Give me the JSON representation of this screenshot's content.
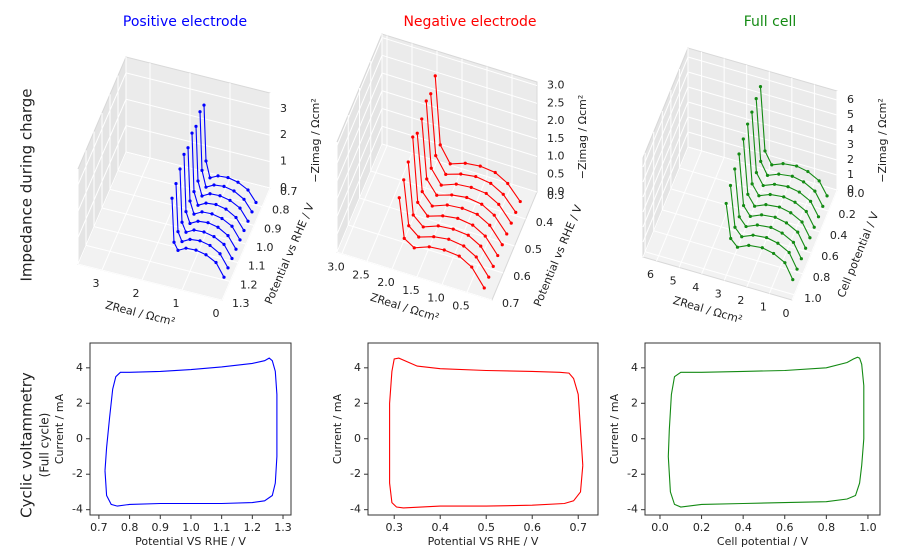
{
  "row_labels": [
    {
      "title": "Impedance during charge"
    },
    {
      "title": "Cyclic voltammetry",
      "subtitle": "(Full cycle)"
    }
  ],
  "chart_data": [
    {
      "type": "line3d",
      "title": "Positive electrode",
      "color": "#0000ff",
      "xlabel": "ZReal / Ωcm²",
      "ylabel": "Potential vs RHE / V",
      "zlabel": "−Zimag / Ωcm²",
      "xlim": [
        0,
        3.6
      ],
      "ylim": [
        0.7,
        1.3
      ],
      "zlim": [
        0,
        3.6
      ],
      "xticks": [
        0,
        1,
        2,
        3
      ],
      "yticks": [
        0.7,
        0.8,
        0.9,
        {
          "value": 1,
          "label": "1.0"
        },
        1.1,
        1.2,
        1.3
      ],
      "zticks": [
        0,
        1,
        2,
        3
      ],
      "x": [
        1.45,
        1.4,
        1.3,
        1.1,
        0.85,
        0.6,
        0.35,
        0.15
      ],
      "series": [
        {
          "y": 0.8,
          "values": [
            3.3,
            1.2,
            0.6,
            0.75,
            0.78,
            0.7,
            0.5,
            0.1
          ]
        },
        {
          "y": 0.85,
          "values": [
            3.4,
            1.2,
            0.6,
            0.76,
            0.8,
            0.72,
            0.5,
            0.1
          ]
        },
        {
          "y": 0.9,
          "values": [
            3.2,
            1.15,
            0.62,
            0.78,
            0.8,
            0.72,
            0.52,
            0.1
          ]
        },
        {
          "y": 0.95,
          "values": [
            3.3,
            1.1,
            0.62,
            0.78,
            0.82,
            0.74,
            0.52,
            0.1
          ]
        },
        {
          "y": 1.0,
          "values": [
            3.1,
            1.1,
            0.64,
            0.8,
            0.82,
            0.74,
            0.54,
            0.1
          ]
        },
        {
          "y": 1.05,
          "values": [
            3.2,
            1.05,
            0.64,
            0.8,
            0.84,
            0.76,
            0.54,
            0.1
          ]
        },
        {
          "y": 1.1,
          "values": [
            3.0,
            1.0,
            0.66,
            0.82,
            0.84,
            0.76,
            0.56,
            0.1
          ]
        },
        {
          "y": 1.15,
          "values": [
            2.8,
            1.0,
            0.66,
            0.82,
            0.86,
            0.78,
            0.56,
            0.1
          ]
        },
        {
          "y": 1.2,
          "values": [
            2.6,
            0.95,
            0.68,
            0.84,
            0.86,
            0.78,
            0.58,
            0.1
          ]
        }
      ]
    },
    {
      "type": "line3d",
      "title": "Negative electrode",
      "color": "#ff0000",
      "xlabel": "ZReal / Ωcm²",
      "ylabel": "Potential vs RHE / V",
      "zlabel": "−Zimag / Ωcm²",
      "xlim": [
        0,
        3.1
      ],
      "ylim": [
        0.3,
        0.7
      ],
      "zlim": [
        0,
        3.1
      ],
      "xticks": [
        0.5,
        {
          "value": 1,
          "label": "1.0"
        },
        1.5,
        {
          "value": 2,
          "label": "2.0"
        },
        2.5,
        {
          "value": 3,
          "label": "3.0"
        }
      ],
      "yticks": [
        0.3,
        0.4,
        0.5,
        0.6,
        0.7
      ],
      "zticks": [
        {
          "value": 0,
          "label": "0.0"
        },
        0.5,
        {
          "value": 1,
          "label": "1.0"
        },
        1.5,
        {
          "value": 2,
          "label": "2.0"
        },
        2.5,
        {
          "value": 3,
          "label": "3.0"
        }
      ],
      "x": [
        1.9,
        1.8,
        1.6,
        1.3,
        1.0,
        0.7,
        0.45,
        0.2
      ],
      "series": [
        {
          "y": 0.36,
          "values": [
            2.9,
            1.0,
            0.55,
            0.7,
            0.75,
            0.7,
            0.5,
            0.1
          ]
        },
        {
          "y": 0.4,
          "values": [
            2.7,
            1.0,
            0.56,
            0.7,
            0.76,
            0.7,
            0.5,
            0.1
          ]
        },
        {
          "y": 0.44,
          "values": [
            2.8,
            0.95,
            0.56,
            0.72,
            0.76,
            0.72,
            0.52,
            0.1
          ]
        },
        {
          "y": 0.48,
          "values": [
            2.6,
            0.95,
            0.58,
            0.72,
            0.78,
            0.72,
            0.52,
            0.1
          ]
        },
        {
          "y": 0.52,
          "values": [
            2.5,
            0.9,
            0.58,
            0.74,
            0.78,
            0.74,
            0.54,
            0.1
          ]
        },
        {
          "y": 0.56,
          "values": [
            2.7,
            0.9,
            0.6,
            0.74,
            0.8,
            0.74,
            0.54,
            0.1
          ]
        },
        {
          "y": 0.6,
          "values": [
            2.3,
            0.85,
            0.6,
            0.76,
            0.8,
            0.76,
            0.56,
            0.1
          ]
        },
        {
          "y": 0.64,
          "values": [
            2.1,
            0.85,
            0.62,
            0.76,
            0.82,
            0.76,
            0.56,
            0.1
          ]
        },
        {
          "y": 0.68,
          "values": [
            1.9,
            0.8,
            0.62,
            0.78,
            0.82,
            0.78,
            0.58,
            0.1
          ]
        }
      ]
    },
    {
      "type": "line3d",
      "title": "Full cell",
      "color": "#138a13",
      "xlabel": "ZReal / Ωcm²",
      "ylabel": "Cell potential / V",
      "zlabel": "−Zimag / Ωcm²",
      "xlim": [
        0,
        6.6
      ],
      "ylim": [
        0,
        1.05
      ],
      "zlim": [
        0,
        6.6
      ],
      "xticks": [
        0,
        1,
        2,
        3,
        4,
        5,
        6
      ],
      "yticks": [
        {
          "value": 0,
          "label": "0.0"
        },
        0.2,
        0.4,
        0.6,
        0.8,
        {
          "value": 1,
          "label": "1.0"
        }
      ],
      "zticks": [
        0,
        1,
        2,
        3,
        4,
        5,
        6
      ],
      "x": [
        3.2,
        3.0,
        2.7,
        2.2,
        1.6,
        1.1,
        0.6,
        0.25
      ],
      "series": [
        {
          "y": 0.1,
          "values": [
            6.2,
            2.0,
            1.2,
            1.5,
            1.6,
            1.45,
            1.05,
            0.2
          ]
        },
        {
          "y": 0.2,
          "values": [
            6.1,
            2.0,
            1.2,
            1.5,
            1.62,
            1.46,
            1.06,
            0.2
          ]
        },
        {
          "y": 0.3,
          "values": [
            5.9,
            1.95,
            1.22,
            1.52,
            1.62,
            1.48,
            1.08,
            0.2
          ]
        },
        {
          "y": 0.4,
          "values": [
            5.8,
            1.9,
            1.24,
            1.54,
            1.64,
            1.5,
            1.1,
            0.2
          ]
        },
        {
          "y": 0.5,
          "values": [
            5.5,
            1.9,
            1.24,
            1.56,
            1.66,
            1.5,
            1.1,
            0.2
          ]
        },
        {
          "y": 0.6,
          "values": [
            5.2,
            1.85,
            1.26,
            1.58,
            1.68,
            1.52,
            1.12,
            0.2
          ]
        },
        {
          "y": 0.7,
          "values": [
            4.9,
            1.8,
            1.28,
            1.6,
            1.7,
            1.54,
            1.14,
            0.2
          ]
        },
        {
          "y": 0.8,
          "values": [
            4.5,
            1.8,
            1.3,
            1.62,
            1.72,
            1.56,
            1.16,
            0.2
          ]
        },
        {
          "y": 0.9,
          "values": [
            4.0,
            1.75,
            1.3,
            1.64,
            1.74,
            1.58,
            1.18,
            0.2
          ]
        }
      ]
    },
    {
      "type": "line",
      "color": "#0000ff",
      "xlabel": "Potential VS RHE / V",
      "ylabel": "Current / mA",
      "xlim": [
        0.671,
        1.326
      ],
      "ylim": [
        -4.3,
        5.4
      ],
      "xticks": [
        0.7,
        0.8,
        0.9,
        {
          "value": 1,
          "label": "1.0"
        },
        1.1,
        1.2,
        1.3
      ],
      "yticks": [
        -4,
        -2,
        0,
        2,
        4
      ],
      "x": [
        0.72,
        0.725,
        0.74,
        0.76,
        0.8,
        0.9,
        1.0,
        1.1,
        1.2,
        1.24,
        1.265,
        1.275,
        1.28,
        1.28,
        1.275,
        1.265,
        1.255,
        1.24,
        1.2,
        1.1,
        1.0,
        0.9,
        0.8,
        0.77,
        0.755,
        0.745,
        0.735,
        0.725,
        0.72
      ],
      "values": [
        -1.8,
        -3.2,
        -3.7,
        -3.8,
        -3.7,
        -3.65,
        -3.65,
        -3.65,
        -3.6,
        -3.5,
        -3.2,
        -2.5,
        -1.0,
        2.5,
        3.8,
        4.4,
        4.55,
        4.4,
        4.25,
        4.05,
        3.9,
        3.8,
        3.75,
        3.75,
        3.5,
        2.8,
        1.2,
        -0.5,
        -1.8
      ]
    },
    {
      "type": "line",
      "color": "#ff0000",
      "xlabel": "Potential VS RHE / V",
      "ylabel": "Current / mA",
      "xlim": [
        0.243,
        0.743
      ],
      "ylim": [
        -4.3,
        5.4
      ],
      "xticks": [
        0.3,
        0.4,
        0.5,
        0.6,
        0.7
      ],
      "yticks": [
        -4,
        -2,
        0,
        2,
        4
      ],
      "x": [
        0.71,
        0.705,
        0.69,
        0.67,
        0.6,
        0.5,
        0.4,
        0.32,
        0.305,
        0.295,
        0.29,
        0.29,
        0.295,
        0.3,
        0.31,
        0.35,
        0.4,
        0.5,
        0.6,
        0.66,
        0.68,
        0.69,
        0.7,
        0.705,
        0.71
      ],
      "values": [
        -1.5,
        -3.0,
        -3.5,
        -3.65,
        -3.75,
        -3.8,
        -3.8,
        -3.9,
        -3.85,
        -3.6,
        -2.5,
        2.0,
        3.8,
        4.5,
        4.55,
        4.1,
        3.95,
        3.85,
        3.8,
        3.75,
        3.7,
        3.4,
        2.5,
        0.5,
        -1.5
      ]
    },
    {
      "type": "line",
      "color": "#138a13",
      "xlabel": "Cell potential / V",
      "ylabel": "Current / mA",
      "xlim": [
        -0.072,
        1.058
      ],
      "ylim": [
        -4.3,
        5.4
      ],
      "xticks": [
        {
          "value": 0,
          "label": "0.0"
        },
        0.2,
        0.4,
        0.6,
        0.8,
        {
          "value": 1,
          "label": "1.0"
        }
      ],
      "yticks": [
        -4,
        -2,
        0,
        2,
        4
      ],
      "x": [
        0.04,
        0.05,
        0.07,
        0.1,
        0.2,
        0.4,
        0.6,
        0.8,
        0.9,
        0.94,
        0.96,
        0.97,
        0.98,
        0.98,
        0.97,
        0.96,
        0.95,
        0.93,
        0.9,
        0.8,
        0.6,
        0.4,
        0.2,
        0.1,
        0.07,
        0.055,
        0.045,
        0.04
      ],
      "values": [
        -1.0,
        -3.0,
        -3.7,
        -3.85,
        -3.7,
        -3.65,
        -3.6,
        -3.55,
        -3.4,
        -3.2,
        -2.5,
        -1.5,
        0,
        3.0,
        4.2,
        4.55,
        4.6,
        4.5,
        4.3,
        4.0,
        3.85,
        3.8,
        3.75,
        3.75,
        3.5,
        2.5,
        0.5,
        -1.0
      ]
    }
  ]
}
